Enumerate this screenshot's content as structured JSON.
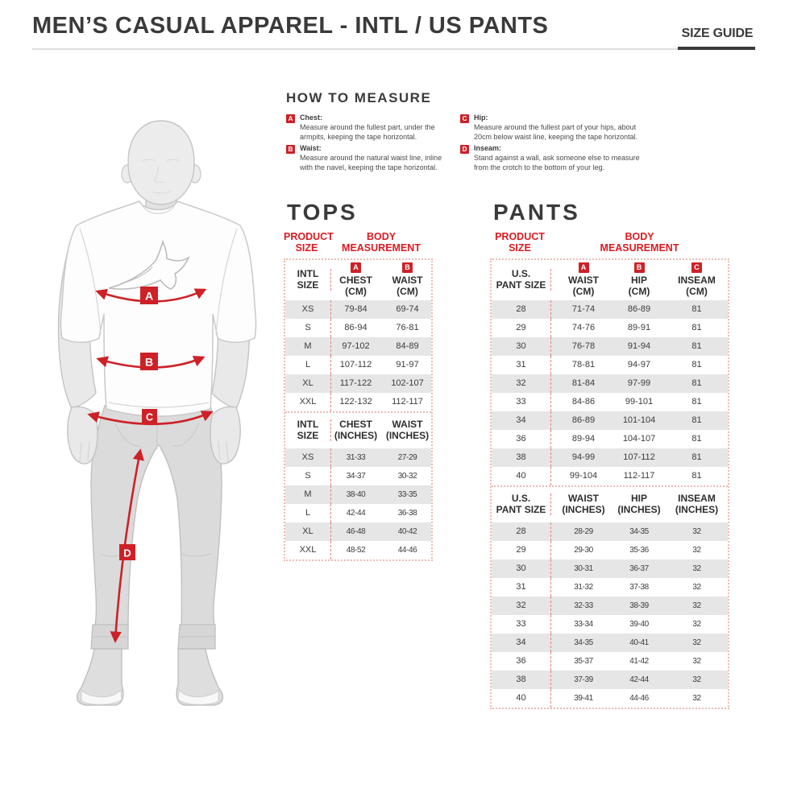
{
  "colors": {
    "accent_red": "#cd2127",
    "red_text": "#e0181f",
    "heading_dark": "#3a3a3a",
    "row_alt_gray": "#e6e6e6"
  },
  "header": {
    "title": "MEN’S CASUAL APPAREL - INTL / US PANTS",
    "size_guide_label": "SIZE GUIDE"
  },
  "how_to_measure": {
    "title": "HOW TO MEASURE",
    "items": [
      {
        "letter": "A",
        "name": "Chest:",
        "text": "Measure around the fullest part, under the armpits, keeping the tape horizontal."
      },
      {
        "letter": "B",
        "name": "Waist:",
        "text": "Measure around the natural waist line, inline with the navel, keeping the tape horizontal."
      },
      {
        "letter": "C",
        "name": "Hip:",
        "text": "Measure around the fullest part of your hips, about 20cm below waist line, keeping the tape horizontal."
      },
      {
        "letter": "D",
        "name": "Inseam:",
        "text": "Stand against a wall, ask someone else to measure from the crotch to the bottom of your leg."
      }
    ]
  },
  "figure": {
    "markers": [
      "A",
      "B",
      "C",
      "D"
    ]
  },
  "tops": {
    "heading": "TOPS",
    "product_size_label": "PRODUCT\nSIZE",
    "body_measurement_label": "BODY\nMEASUREMENT",
    "table": {
      "sections": [
        {
          "columns": [
            {
              "marker": "",
              "label": "INTL\nSIZE"
            },
            {
              "marker": "A",
              "label": "CHEST\n(CM)"
            },
            {
              "marker": "B",
              "label": "WAIST\n(CM)"
            }
          ],
          "rows": [
            [
              "XS",
              "79-84",
              "69-74"
            ],
            [
              "S",
              "86-94",
              "76-81"
            ],
            [
              "M",
              "97-102",
              "84-89"
            ],
            [
              "L",
              "107-112",
              "91-97"
            ],
            [
              "XL",
              "117-122",
              "102-107"
            ],
            [
              "XXL",
              "122-132",
              "112-117"
            ]
          ]
        },
        {
          "columns": [
            {
              "marker": "",
              "label": "INTL\nSIZE"
            },
            {
              "marker": "",
              "label": "CHEST\n(INCHES)"
            },
            {
              "marker": "",
              "label": "WAIST\n(INCHES)"
            }
          ],
          "rows": [
            [
              "XS",
              "31-33",
              "27-29"
            ],
            [
              "S",
              "34-37",
              "30-32"
            ],
            [
              "M",
              "38-40",
              "33-35"
            ],
            [
              "L",
              "42-44",
              "36-38"
            ],
            [
              "XL",
              "46-48",
              "40-42"
            ],
            [
              "XXL",
              "48-52",
              "44-46"
            ]
          ]
        }
      ]
    }
  },
  "pants": {
    "heading": "PANTS",
    "product_size_label": "PRODUCT\nSIZE",
    "body_measurement_label": "BODY\nMEASUREMENT",
    "table": {
      "sections": [
        {
          "columns": [
            {
              "marker": "",
              "label": "U.S.\nPANT SIZE"
            },
            {
              "marker": "A",
              "label": "WAIST\n(CM)"
            },
            {
              "marker": "B",
              "label": "HIP\n(CM)"
            },
            {
              "marker": "C",
              "label": "INSEAM\n(CM)"
            }
          ],
          "rows": [
            [
              "28",
              "71-74",
              "86-89",
              "81"
            ],
            [
              "29",
              "74-76",
              "89-91",
              "81"
            ],
            [
              "30",
              "76-78",
              "91-94",
              "81"
            ],
            [
              "31",
              "78-81",
              "94-97",
              "81"
            ],
            [
              "32",
              "81-84",
              "97-99",
              "81"
            ],
            [
              "33",
              "84-86",
              "99-101",
              "81"
            ],
            [
              "34",
              "86-89",
              "101-104",
              "81"
            ],
            [
              "36",
              "89-94",
              "104-107",
              "81"
            ],
            [
              "38",
              "94-99",
              "107-112",
              "81"
            ],
            [
              "40",
              "99-104",
              "112-117",
              "81"
            ]
          ]
        },
        {
          "columns": [
            {
              "marker": "",
              "label": "U.S.\nPANT SIZE"
            },
            {
              "marker": "",
              "label": "WAIST\n(INCHES)"
            },
            {
              "marker": "",
              "label": "HIP\n(INCHES)"
            },
            {
              "marker": "",
              "label": "INSEAM\n(INCHES)"
            }
          ],
          "rows": [
            [
              "28",
              "28-29",
              "34-35",
              "32"
            ],
            [
              "29",
              "29-30",
              "35-36",
              "32"
            ],
            [
              "30",
              "30-31",
              "36-37",
              "32"
            ],
            [
              "31",
              "31-32",
              "37-38",
              "32"
            ],
            [
              "32",
              "32-33",
              "38-39",
              "32"
            ],
            [
              "33",
              "33-34",
              "39-40",
              "32"
            ],
            [
              "34",
              "34-35",
              "40-41",
              "32"
            ],
            [
              "36",
              "35-37",
              "41-42",
              "32"
            ],
            [
              "38",
              "37-39",
              "42-44",
              "32"
            ],
            [
              "40",
              "39-41",
              "44-46",
              "32"
            ]
          ]
        }
      ]
    }
  }
}
